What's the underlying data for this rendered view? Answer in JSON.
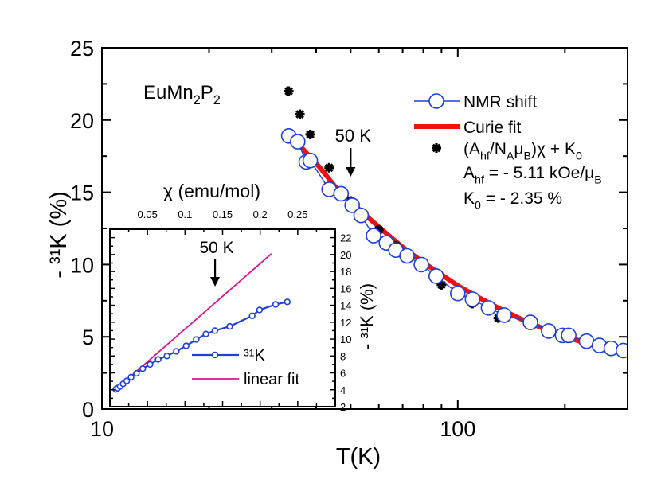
{
  "chart_data": [
    {
      "type": "scatter",
      "xscale": "log",
      "xlim": [
        10,
        300
      ],
      "ylim": [
        0,
        25
      ],
      "xlabel": "T(K)",
      "ylabel": "- ³¹K (%)",
      "sample_label": "EuMn₂P₂",
      "x_ticks": [
        10,
        100
      ],
      "y_ticks": [
        0,
        5,
        10,
        15,
        20,
        25
      ],
      "annotation": {
        "text": "50 K",
        "x": 50,
        "y": 14.4
      },
      "legend": {
        "position": "top-right",
        "entries": [
          "NMR shift",
          "Curie fit",
          "(A_hf/N_A μ_B)χ + K₀"
        ],
        "param_lines": [
          "A_hf = - 5.11 kOe/μ_B",
          "K₀ = - 2.35 %"
        ]
      },
      "series": [
        {
          "name": "NMR shift",
          "marker": "open-circle",
          "color": "#1f3fd6",
          "x": [
            33.5,
            35.5,
            37.5,
            38.5,
            43.5,
            47,
            50.5,
            53.5,
            58,
            63,
            67,
            72,
            79,
            87,
            100,
            110,
            122,
            135,
            160,
            180,
            197,
            205,
            230,
            250,
            270,
            292
          ],
          "y": [
            18.9,
            18.5,
            17.1,
            17.2,
            15.2,
            14.9,
            14.1,
            13.4,
            12.0,
            11.5,
            11.0,
            10.6,
            10.0,
            9.2,
            8.0,
            7.6,
            7.0,
            6.5,
            6.0,
            5.4,
            5.1,
            5.1,
            4.7,
            4.4,
            4.2,
            4.05
          ]
        },
        {
          "name": "Curie fit",
          "type": "line",
          "color": "#ee1111",
          "x": [
            34,
            37,
            41,
            45,
            50,
            56,
            63,
            70,
            80,
            90,
            100,
            115,
            130,
            150,
            175,
            200,
            230,
            260,
            292
          ],
          "y": [
            18.85,
            17.9,
            16.7,
            15.45,
            14.35,
            13.25,
            12.15,
            11.2,
            10.15,
            9.3,
            8.55,
            7.7,
            7.0,
            6.25,
            5.55,
            5.0,
            4.55,
            4.2,
            3.9
          ]
        },
        {
          "name": "(A_hf/N_A μ_B)χ + K₀",
          "marker": "asterisk",
          "color": "#000000",
          "x": [
            33.5,
            36,
            38.5,
            43.5,
            50,
            60,
            67,
            72,
            79,
            90,
            110,
            130
          ],
          "y": [
            22.0,
            20.4,
            19.0,
            16.7,
            14.4,
            12.4,
            11.3,
            10.4,
            9.8,
            8.6,
            7.3,
            6.3
          ]
        }
      ]
    },
    {
      "type": "line",
      "xlabel": "χ (emu/mol)",
      "ylabel": "- ³¹K (%)",
      "xlim": [
        0,
        0.3
      ],
      "ylim": [
        2,
        23
      ],
      "x_ticks": [
        "0.05",
        "0.1",
        "0.15",
        "0.2",
        "0.25"
      ],
      "y_ticks": [
        "2",
        "4",
        "6",
        "8",
        "10",
        "12",
        "14",
        "16",
        "18",
        "20",
        "22"
      ],
      "annotation": {
        "text": "50 K",
        "x": 0.14,
        "y": 14.4
      },
      "legend": {
        "position": "bottom-right",
        "entries": [
          "³¹K",
          "linear fit"
        ]
      },
      "series": [
        {
          "name": "³¹K",
          "marker": "open-circle",
          "color": "#1f3fd6",
          "x": [
            0.0079,
            0.0105,
            0.0136,
            0.0176,
            0.0224,
            0.0282,
            0.0354,
            0.0437,
            0.0534,
            0.0642,
            0.0759,
            0.0884,
            0.1015,
            0.1149,
            0.1278,
            0.1398,
            0.1595,
            0.1894,
            0.1992,
            0.2206,
            0.2362
          ],
          "y": [
            4.05,
            4.2,
            4.4,
            4.7,
            5.05,
            5.5,
            5.95,
            6.5,
            7.0,
            7.6,
            8.0,
            8.55,
            9.2,
            9.95,
            10.6,
            11.0,
            11.5,
            12.75,
            13.45,
            14.1,
            14.4
          ]
        },
        {
          "name": "linear fit",
          "type": "line",
          "color": "#e0128e",
          "x": [
            0.0079,
            0.215
          ],
          "y": [
            4.05,
            20.1
          ]
        }
      ]
    }
  ]
}
